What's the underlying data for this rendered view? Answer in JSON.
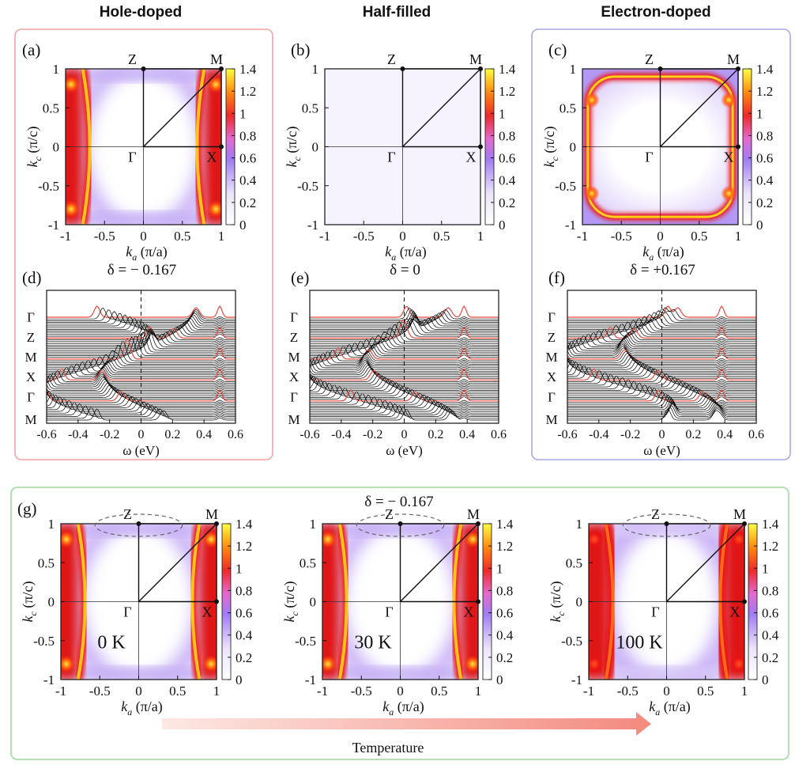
{
  "headers": {
    "hole": "Hole-doped",
    "half": "Half-filled",
    "electron": "Electron-doped"
  },
  "colors": {
    "hole": "#f15a5a",
    "half": "#111111",
    "electron": "#5a5af0",
    "hole_box": "#f3a3a3",
    "electron_box": "#a8a8e8",
    "g_box": "#9ed99e",
    "spectral_line": "#000000",
    "spectral_highlight": "#e8483c",
    "colormap": [
      "#ffffff",
      "#9a6ff0",
      "#dd1010",
      "#ffff30"
    ]
  },
  "fs_axes": {
    "x_label_k": "k",
    "x_label_sub": "a",
    "x_label_unit": " (π/a)",
    "y_label_k": "k",
    "y_label_sub": "c",
    "y_label_unit": " (π/c)",
    "x_ticks": [
      "-1",
      "-0.5",
      "0",
      "0.5",
      "1"
    ],
    "y_ticks": [
      "-1",
      "-0.5",
      "0",
      "0.5",
      "1"
    ],
    "cbar_ticks": [
      "0",
      "0.2",
      "0.4",
      "0.6",
      "0.8",
      "1",
      "1.2",
      "1.4"
    ],
    "range": [
      -1,
      1
    ],
    "cbar_range": [
      0,
      1.4
    ],
    "points": {
      "Z": "Z",
      "M": "M",
      "G": "Γ",
      "X": "X"
    }
  },
  "spec_axes": {
    "x_label": "ω (eV)",
    "x_ticks": [
      "-0.6",
      "-0.4",
      "-0.2",
      "0",
      "0.2",
      "0.4",
      "0.6"
    ],
    "x_range": [
      -0.6,
      0.6
    ],
    "path_labels": [
      "Γ",
      "Z",
      "M",
      "X",
      "Γ",
      "M"
    ]
  },
  "panels": [
    {
      "id": "a",
      "label": "(a)",
      "kind": "fs",
      "intensity": 1.0,
      "shape": "hole",
      "temp": ""
    },
    {
      "id": "b",
      "label": "(b)",
      "kind": "fs",
      "intensity": 0.08,
      "shape": "half",
      "temp": ""
    },
    {
      "id": "c",
      "label": "(c)",
      "kind": "fs",
      "intensity": 1.0,
      "shape": "electron",
      "temp": ""
    },
    {
      "id": "d",
      "label": "(d)",
      "kind": "spec",
      "delta": "δ = − 0.167"
    },
    {
      "id": "e",
      "label": "(e)",
      "kind": "spec",
      "delta": "δ = 0"
    },
    {
      "id": "f",
      "label": "(f)",
      "kind": "spec",
      "delta": "δ = +0.167"
    }
  ],
  "g_section": {
    "label": "(g)",
    "delta": "δ = − 0.167",
    "temps": [
      "0 K",
      "30 K",
      "100 K"
    ],
    "arrow_label": "Temperature"
  }
}
